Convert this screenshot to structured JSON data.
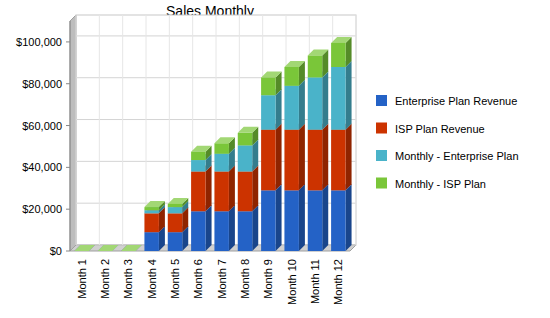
{
  "chart_data": {
    "type": "bar",
    "title": "Sales Monthly",
    "stacked": true,
    "grid": true,
    "legend": "right",
    "categories": [
      "Month 1",
      "Month 2",
      "Month 3",
      "Month 4",
      "Month 5",
      "Month 6",
      "Month 7",
      "Month 8",
      "Month 9",
      "Month 10",
      "Month 11",
      "Month 12"
    ],
    "series": [
      {
        "name": "Enterprise Plan Revenue",
        "color": "#2462c6",
        "values": [
          0,
          0,
          0,
          9000,
          9000,
          19000,
          19000,
          19000,
          29000,
          29000,
          29000,
          29000
        ]
      },
      {
        "name": "ISP Plan Revenue",
        "color": "#cc3300",
        "values": [
          0,
          0,
          0,
          9000,
          9000,
          19000,
          19000,
          19000,
          29000,
          29000,
          29000,
          29000
        ]
      },
      {
        "name": "Monthly - Enterprise Plan",
        "color": "#4ab3c9",
        "values": [
          0,
          0,
          0,
          1500,
          3000,
          5500,
          8500,
          12500,
          16500,
          21000,
          25000,
          30000
        ]
      },
      {
        "name": "Monthly - ISP Plan",
        "color": "#7ac639",
        "values": [
          0,
          0,
          0,
          1500,
          1500,
          4000,
          5000,
          6000,
          8500,
          9000,
          10500,
          11500
        ]
      }
    ],
    "ylim": [
      0,
      110000
    ],
    "yticks": [
      {
        "value": 0,
        "label": "$0"
      },
      {
        "value": 20000,
        "label": "$20,000"
      },
      {
        "value": 40000,
        "label": "$40,000"
      },
      {
        "value": 60000,
        "label": "$60,000"
      },
      {
        "value": 80000,
        "label": "$80,000"
      },
      {
        "value": 100000,
        "label": "$100,000"
      }
    ]
  }
}
